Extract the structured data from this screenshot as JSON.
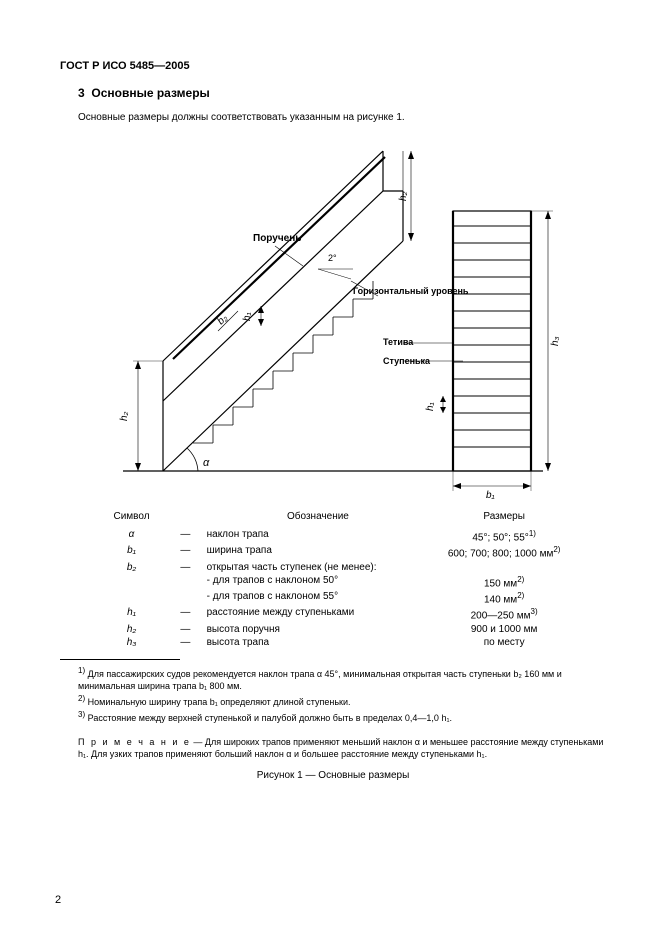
{
  "doc": {
    "id": "ГОСТ Р ИСО 5485—2005",
    "section_number": "3",
    "section_title": "Основные размеры",
    "intro": "Основные размеры должны соответствовать указанным на рисунке 1.",
    "page_number": "2"
  },
  "figure": {
    "labels": {
      "handrail": "Поручень",
      "horiz_level": "Горизонтальный уровень",
      "stringer": "Тетива",
      "step": "Ступенька",
      "angle_small": "2°",
      "alpha": "α",
      "h1": "h₁",
      "h2": "h₂",
      "h3": "h₃",
      "b1": "b₁",
      "b2": "b₂"
    },
    "style": {
      "stroke": "#000000",
      "stroke_width_main": 1.2,
      "stroke_width_thin": 0.8,
      "font_size_label": 10,
      "font_size_dim": 10,
      "background": "#ffffff"
    }
  },
  "legend": {
    "headers": {
      "symbol": "Символ",
      "desc": "Обозначение",
      "size": "Размеры"
    },
    "rows": [
      {
        "sym": "α",
        "desc": "наклон трапа",
        "size": "45°; 50°; 55°",
        "size_sup": "1)"
      },
      {
        "sym": "b₁",
        "desc": "ширина трапа",
        "size": "600; 700; 800; 1000 мм",
        "size_sup": "2)"
      },
      {
        "sym": "b₂",
        "desc": "открытая часть ступенек (не менее):",
        "size": ""
      },
      {
        "sym": "",
        "desc": "- для трапов с наклоном 50°",
        "size": "150 мм",
        "size_sup": "2)"
      },
      {
        "sym": "",
        "desc": "- для трапов с наклоном 55°",
        "size": "140 мм",
        "size_sup": "2)"
      },
      {
        "sym": "h₁",
        "desc": "расстояние между ступеньками",
        "size": "200—250 мм",
        "size_sup": "3)"
      },
      {
        "sym": "h₂",
        "desc": "высота поручня",
        "size": "900 и 1000 мм"
      },
      {
        "sym": "h₃",
        "desc": "высота трапа",
        "size": "по месту"
      }
    ]
  },
  "footnotes": {
    "f1": "Для пассажирских судов рекомендуется наклон трапа α 45°, минимальная открытая часть ступеньки b₂ 160 мм и минимальная ширина трапа b₁ 800 мм.",
    "f2": "Номинальную ширину трапа b₁ определяют длиной ступеньки.",
    "f3": "Расстояние между верхней ступенькой и палубой должно быть в пределах 0,4—1,0 h₁."
  },
  "note": {
    "prefix": "П р и м е ч а н и е",
    "text": " — Для широких трапов применяют меньший наклон α и меньшее расстояние между ступеньками h₁. Для узких трапов применяют больший наклон α и большее расстояние между ступеньками h₁."
  },
  "caption": "Рисунок 1 — Основные размеры"
}
